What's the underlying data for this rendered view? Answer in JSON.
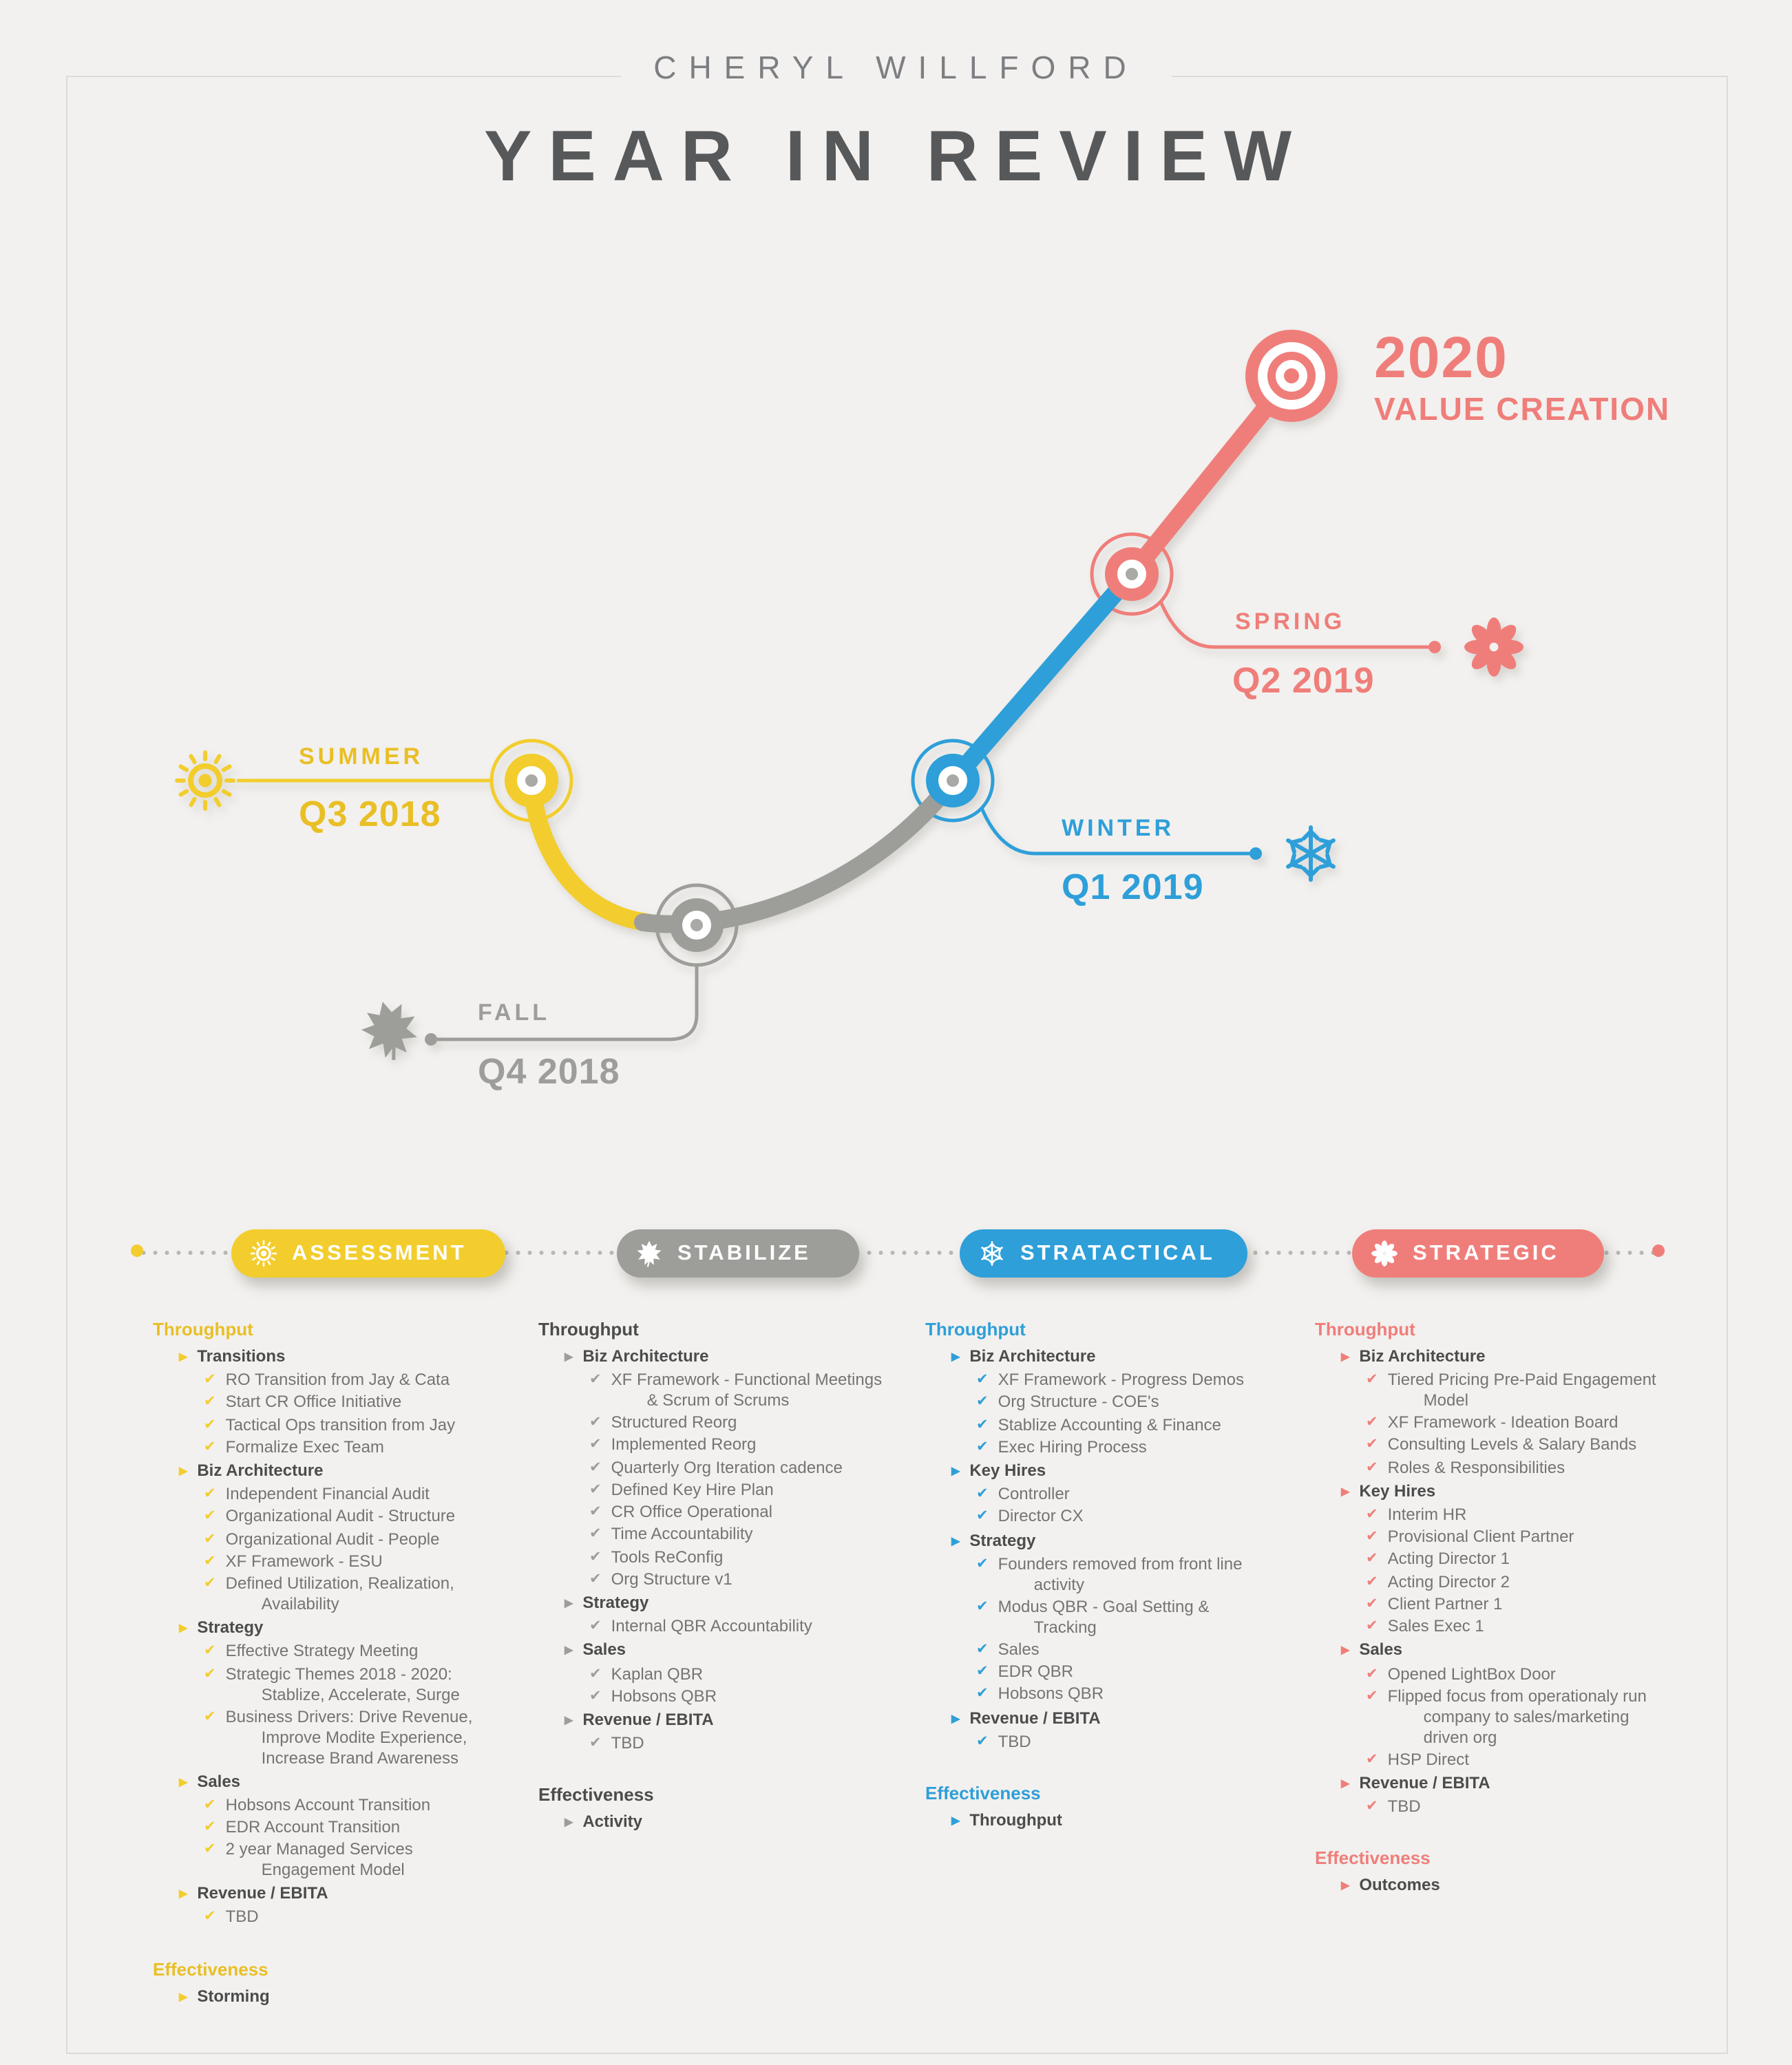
{
  "header": {
    "name": "CHERYL WILLFORD",
    "title": "YEAR IN REVIEW"
  },
  "timeline": {
    "milestones": [
      {
        "season": "SUMMER",
        "quarter": "Q3 2018",
        "icon": "sun-icon",
        "color": "#f2cd2d"
      },
      {
        "season": "FALL",
        "quarter": "Q4 2018",
        "icon": "leaf-icon",
        "color": "#9d9d99"
      },
      {
        "season": "WINTER",
        "quarter": "Q1 2019",
        "icon": "snowflake-icon",
        "color": "#2e9fd9"
      },
      {
        "season": "SPRING",
        "quarter": "Q2 2019",
        "icon": "flower-icon",
        "color": "#ef7e7a"
      }
    ],
    "goal": {
      "year": "2020",
      "label": "VALUE CREATION",
      "icon": "target-icon",
      "color": "#ef7e7a"
    }
  },
  "separator": {
    "left_dot_color": "#f2cd2d",
    "right_dot_color": "#ef7e7a"
  },
  "phases": [
    {
      "label": "ASSESSMENT",
      "icon": "sun-icon",
      "color": "#f2cd2d",
      "heading_color": "#e9bf26",
      "sections": [
        {
          "heading": "Throughput",
          "groups": [
            {
              "title": "Transitions",
              "items": [
                "RO Transition from Jay & Cata",
                "Start CR Office Initiative",
                "Tactical Ops transition from Jay",
                "Formalize Exec Team"
              ]
            },
            {
              "title": "Biz Architecture",
              "items": [
                "Independent Financial Audit",
                "Organizational Audit - Structure",
                "Organizational Audit - People",
                "XF Framework - ESU",
                "Defined Utilization, Realization, Availability"
              ]
            },
            {
              "title": "Strategy",
              "items": [
                "Effective Strategy Meeting",
                "Strategic Themes 2018 - 2020: Stablize, Accelerate, Surge",
                "Business Drivers: Drive Revenue, Improve Modite Experience, Increase Brand Awareness"
              ]
            },
            {
              "title": "Sales",
              "items": [
                "Hobsons Account Transition",
                "EDR Account Transition",
                "2 year Managed Services Engagement Model"
              ]
            },
            {
              "title": "Revenue / EBITA",
              "items": [
                "TBD"
              ]
            }
          ]
        },
        {
          "heading": "Effectiveness",
          "groups": [
            {
              "title": "Storming",
              "items": []
            }
          ]
        }
      ]
    },
    {
      "label": "STABILIZE",
      "icon": "leaf-icon",
      "color": "#9d9d99",
      "heading_color": "#4c4c4b",
      "sections": [
        {
          "heading": "Throughput",
          "groups": [
            {
              "title": "Biz Architecture",
              "items": [
                "XF Framework - Functional Meetings & Scrum of Scrums",
                "Structured Reorg",
                "Implemented Reorg",
                "Quarterly Org Iteration cadence",
                "Defined Key Hire Plan",
                "CR Office Operational",
                "Time Accountability",
                "Tools ReConfig",
                "Org Structure v1"
              ]
            },
            {
              "title": "Strategy",
              "items": [
                "Internal QBR Accountability"
              ]
            },
            {
              "title": "Sales",
              "items": [
                "Kaplan QBR",
                "Hobsons QBR"
              ]
            },
            {
              "title": "Revenue / EBITA",
              "items": [
                "TBD"
              ]
            }
          ]
        },
        {
          "heading": "Effectiveness",
          "groups": [
            {
              "title": "Activity",
              "items": []
            }
          ]
        }
      ]
    },
    {
      "label": "STRATACTICAL",
      "icon": "snowflake-icon",
      "color": "#2e9fd9",
      "heading_color": "#2e9fd9",
      "sections": [
        {
          "heading": "Throughput",
          "groups": [
            {
              "title": "Biz Architecture",
              "items": [
                "XF Framework - Progress Demos",
                "Org Structure - COE's",
                "Stablize Accounting & Finance",
                "Exec Hiring Process"
              ]
            },
            {
              "title": "Key Hires",
              "items": [
                "Controller",
                "Director CX"
              ]
            },
            {
              "title": "Strategy",
              "items": [
                "Founders removed from front line activity",
                "Modus QBR - Goal Setting & Tracking",
                "Sales",
                "EDR QBR",
                "Hobsons QBR"
              ]
            },
            {
              "title": "Revenue / EBITA",
              "items": [
                "TBD"
              ]
            }
          ]
        },
        {
          "heading": "Effectiveness",
          "groups": [
            {
              "title": "Throughput",
              "items": []
            }
          ]
        }
      ]
    },
    {
      "label": "STRATEGIC",
      "icon": "flower-icon",
      "color": "#ef7e7a",
      "heading_color": "#ef7e7a",
      "sections": [
        {
          "heading": "Throughput",
          "groups": [
            {
              "title": "Biz Architecture",
              "items": [
                "Tiered Pricing Pre-Paid Engagement Model",
                "XF Framework - Ideation Board",
                "Consulting Levels & Salary Bands",
                "Roles & Responsibilities"
              ]
            },
            {
              "title": "Key Hires",
              "items": [
                "Interim HR",
                "Provisional Client Partner",
                "Acting Director 1",
                "Acting Director 2",
                "Client Partner 1",
                "Sales Exec 1"
              ]
            },
            {
              "title": "Sales",
              "items": [
                "Opened LightBox Door",
                "Flipped focus from operationaly run company to sales/marketing driven org",
                "HSP Direct"
              ]
            },
            {
              "title": "Revenue / EBITA",
              "items": [
                "TBD"
              ]
            }
          ]
        },
        {
          "heading": "Effectiveness",
          "groups": [
            {
              "title": "Outcomes",
              "items": []
            }
          ]
        }
      ]
    }
  ]
}
